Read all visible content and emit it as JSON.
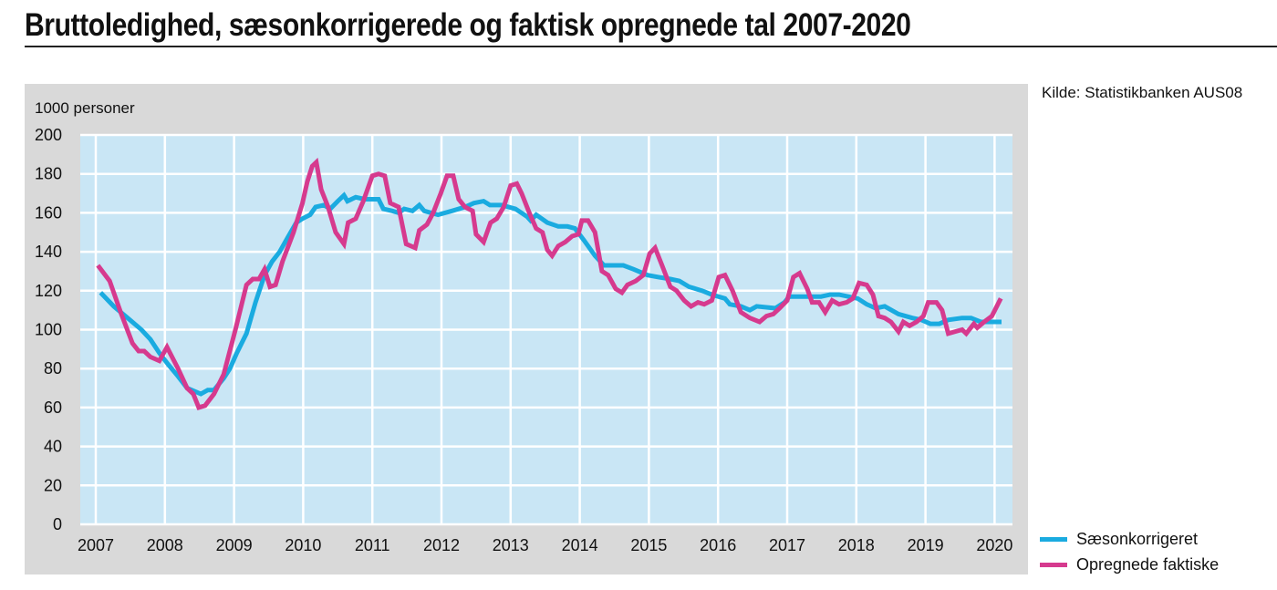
{
  "header": {
    "title": "Bruttoledighed, sæsonkorrigerede og faktisk opregnede tal 2007-2020"
  },
  "source": "Kilde: Statistikbanken AUS08",
  "chart_data": {
    "type": "line",
    "title": "Bruttoledighed, sæsonkorrigerede og faktisk opregnede tal 2007-2020",
    "ylabel": "1000 personer",
    "xlabel": "",
    "ylim": [
      0,
      200
    ],
    "xlim": [
      2006.78,
      2020.25
    ],
    "yticks": [
      0,
      20,
      40,
      60,
      80,
      100,
      120,
      140,
      160,
      180,
      200
    ],
    "xticks": [
      2007,
      2008,
      2009,
      2010,
      2011,
      2012,
      2013,
      2014,
      2015,
      2016,
      2017,
      2018,
      2019,
      2020
    ],
    "grid": true,
    "legend_position": "bottom-right-outside",
    "colors": {
      "plot_bg": "#c9e6f5",
      "frame_bg": "#d9d9d9",
      "grid": "#ffffff"
    },
    "series": [
      {
        "name": "Sæsonkorrigeret",
        "color": "#1aabe0",
        "points": [
          [
            2007.07,
            119
          ],
          [
            2007.26,
            112
          ],
          [
            2007.46,
            106
          ],
          [
            2007.66,
            100
          ],
          [
            2007.79,
            95
          ],
          [
            2007.92,
            88
          ],
          [
            2008.05,
            82
          ],
          [
            2008.19,
            76
          ],
          [
            2008.32,
            70
          ],
          [
            2008.52,
            67
          ],
          [
            2008.62,
            69
          ],
          [
            2008.71,
            69
          ],
          [
            2008.85,
            75
          ],
          [
            2008.94,
            80
          ],
          [
            2009.04,
            88
          ],
          [
            2009.18,
            98
          ],
          [
            2009.31,
            114
          ],
          [
            2009.44,
            128
          ],
          [
            2009.55,
            135
          ],
          [
            2009.66,
            140
          ],
          [
            2009.77,
            147
          ],
          [
            2009.9,
            155
          ],
          [
            2009.99,
            157
          ],
          [
            2010.1,
            159
          ],
          [
            2010.18,
            163
          ],
          [
            2010.3,
            164
          ],
          [
            2010.39,
            162
          ],
          [
            2010.5,
            166
          ],
          [
            2010.59,
            169
          ],
          [
            2010.64,
            166
          ],
          [
            2010.76,
            168
          ],
          [
            2010.89,
            167
          ],
          [
            2011.09,
            167
          ],
          [
            2011.16,
            162
          ],
          [
            2011.29,
            161
          ],
          [
            2011.38,
            160
          ],
          [
            2011.46,
            162
          ],
          [
            2011.58,
            161
          ],
          [
            2011.68,
            164
          ],
          [
            2011.75,
            161
          ],
          [
            2011.95,
            159
          ],
          [
            2012.15,
            161
          ],
          [
            2012.34,
            163
          ],
          [
            2012.47,
            165
          ],
          [
            2012.61,
            166
          ],
          [
            2012.7,
            164
          ],
          [
            2012.87,
            164
          ],
          [
            2013.07,
            162
          ],
          [
            2013.24,
            158
          ],
          [
            2013.29,
            156
          ],
          [
            2013.37,
            159
          ],
          [
            2013.53,
            155
          ],
          [
            2013.69,
            153
          ],
          [
            2013.82,
            153
          ],
          [
            2013.93,
            152
          ],
          [
            2014.06,
            146
          ],
          [
            2014.22,
            138
          ],
          [
            2014.35,
            133
          ],
          [
            2014.63,
            133
          ],
          [
            2014.78,
            131
          ],
          [
            2014.98,
            128
          ],
          [
            2015.14,
            127
          ],
          [
            2015.31,
            126
          ],
          [
            2015.44,
            125
          ],
          [
            2015.58,
            122
          ],
          [
            2015.77,
            120
          ],
          [
            2015.91,
            118
          ],
          [
            2016.1,
            116
          ],
          [
            2016.17,
            113
          ],
          [
            2016.33,
            112
          ],
          [
            2016.46,
            110
          ],
          [
            2016.56,
            112
          ],
          [
            2016.83,
            111
          ],
          [
            2016.96,
            114
          ],
          [
            2017.03,
            117
          ],
          [
            2017.49,
            117
          ],
          [
            2017.62,
            118
          ],
          [
            2017.75,
            118
          ],
          [
            2018.02,
            116
          ],
          [
            2018.15,
            113
          ],
          [
            2018.28,
            111
          ],
          [
            2018.41,
            112
          ],
          [
            2018.61,
            108
          ],
          [
            2018.81,
            106
          ],
          [
            2018.94,
            105
          ],
          [
            2019.07,
            103
          ],
          [
            2019.2,
            103
          ],
          [
            2019.33,
            105
          ],
          [
            2019.53,
            106
          ],
          [
            2019.66,
            106
          ],
          [
            2019.8,
            104
          ],
          [
            2020.1,
            104
          ]
        ]
      },
      {
        "name": "Opregnede faktiske",
        "color": "#d63a8e",
        "points": [
          [
            2007.03,
            133
          ],
          [
            2007.2,
            125
          ],
          [
            2007.37,
            108
          ],
          [
            2007.53,
            93
          ],
          [
            2007.62,
            89
          ],
          [
            2007.7,
            89
          ],
          [
            2007.79,
            86
          ],
          [
            2007.92,
            84
          ],
          [
            2008.03,
            91
          ],
          [
            2008.19,
            80
          ],
          [
            2008.32,
            70
          ],
          [
            2008.41,
            67
          ],
          [
            2008.49,
            60
          ],
          [
            2008.58,
            61
          ],
          [
            2008.71,
            67
          ],
          [
            2008.85,
            77
          ],
          [
            2009.02,
            100
          ],
          [
            2009.18,
            123
          ],
          [
            2009.27,
            126
          ],
          [
            2009.36,
            126
          ],
          [
            2009.44,
            131
          ],
          [
            2009.52,
            122
          ],
          [
            2009.6,
            123
          ],
          [
            2009.7,
            135
          ],
          [
            2009.86,
            150
          ],
          [
            2009.99,
            165
          ],
          [
            2010.06,
            176
          ],
          [
            2010.13,
            184
          ],
          [
            2010.19,
            186
          ],
          [
            2010.26,
            172
          ],
          [
            2010.36,
            163
          ],
          [
            2010.47,
            150
          ],
          [
            2010.59,
            144
          ],
          [
            2010.65,
            155
          ],
          [
            2010.76,
            157
          ],
          [
            2010.87,
            166
          ],
          [
            2011.0,
            179
          ],
          [
            2011.09,
            180
          ],
          [
            2011.18,
            179
          ],
          [
            2011.26,
            165
          ],
          [
            2011.38,
            163
          ],
          [
            2011.49,
            144
          ],
          [
            2011.62,
            142
          ],
          [
            2011.68,
            151
          ],
          [
            2011.79,
            154
          ],
          [
            2011.88,
            160
          ],
          [
            2011.99,
            170
          ],
          [
            2012.08,
            179
          ],
          [
            2012.17,
            179
          ],
          [
            2012.25,
            167
          ],
          [
            2012.34,
            163
          ],
          [
            2012.45,
            161
          ],
          [
            2012.5,
            149
          ],
          [
            2012.61,
            145
          ],
          [
            2012.71,
            155
          ],
          [
            2012.8,
            157
          ],
          [
            2012.9,
            163
          ],
          [
            2013.0,
            174
          ],
          [
            2013.09,
            175
          ],
          [
            2013.16,
            170
          ],
          [
            2013.27,
            160
          ],
          [
            2013.37,
            152
          ],
          [
            2013.46,
            150
          ],
          [
            2013.53,
            141
          ],
          [
            2013.6,
            138
          ],
          [
            2013.69,
            143
          ],
          [
            2013.79,
            145
          ],
          [
            2013.89,
            148
          ],
          [
            2013.98,
            149
          ],
          [
            2014.03,
            156
          ],
          [
            2014.12,
            156
          ],
          [
            2014.22,
            150
          ],
          [
            2014.32,
            130
          ],
          [
            2014.41,
            128
          ],
          [
            2014.52,
            121
          ],
          [
            2014.61,
            119
          ],
          [
            2014.69,
            123
          ],
          [
            2014.81,
            125
          ],
          [
            2014.92,
            128
          ],
          [
            2015.01,
            139
          ],
          [
            2015.09,
            142
          ],
          [
            2015.19,
            133
          ],
          [
            2015.31,
            122
          ],
          [
            2015.4,
            120
          ],
          [
            2015.51,
            115
          ],
          [
            2015.61,
            112
          ],
          [
            2015.71,
            114
          ],
          [
            2015.8,
            113
          ],
          [
            2015.91,
            115
          ],
          [
            2016.01,
            127
          ],
          [
            2016.1,
            128
          ],
          [
            2016.21,
            120
          ],
          [
            2016.33,
            109
          ],
          [
            2016.46,
            106
          ],
          [
            2016.6,
            104
          ],
          [
            2016.7,
            107
          ],
          [
            2016.8,
            108
          ],
          [
            2016.89,
            111
          ],
          [
            2017.0,
            115
          ],
          [
            2017.09,
            127
          ],
          [
            2017.18,
            129
          ],
          [
            2017.29,
            121
          ],
          [
            2017.36,
            114
          ],
          [
            2017.46,
            114
          ],
          [
            2017.55,
            109
          ],
          [
            2017.65,
            115
          ],
          [
            2017.75,
            113
          ],
          [
            2017.86,
            114
          ],
          [
            2017.95,
            116
          ],
          [
            2018.04,
            124
          ],
          [
            2018.15,
            123
          ],
          [
            2018.24,
            118
          ],
          [
            2018.32,
            107
          ],
          [
            2018.41,
            106
          ],
          [
            2018.5,
            104
          ],
          [
            2018.61,
            99
          ],
          [
            2018.68,
            104
          ],
          [
            2018.77,
            102
          ],
          [
            2018.87,
            104
          ],
          [
            2018.97,
            107
          ],
          [
            2019.04,
            114
          ],
          [
            2019.16,
            114
          ],
          [
            2019.24,
            110
          ],
          [
            2019.33,
            98
          ],
          [
            2019.43,
            99
          ],
          [
            2019.53,
            100
          ],
          [
            2019.59,
            98
          ],
          [
            2019.7,
            103
          ],
          [
            2019.75,
            101
          ],
          [
            2019.85,
            104
          ],
          [
            2019.96,
            107
          ],
          [
            2020.09,
            116
          ]
        ]
      }
    ]
  }
}
